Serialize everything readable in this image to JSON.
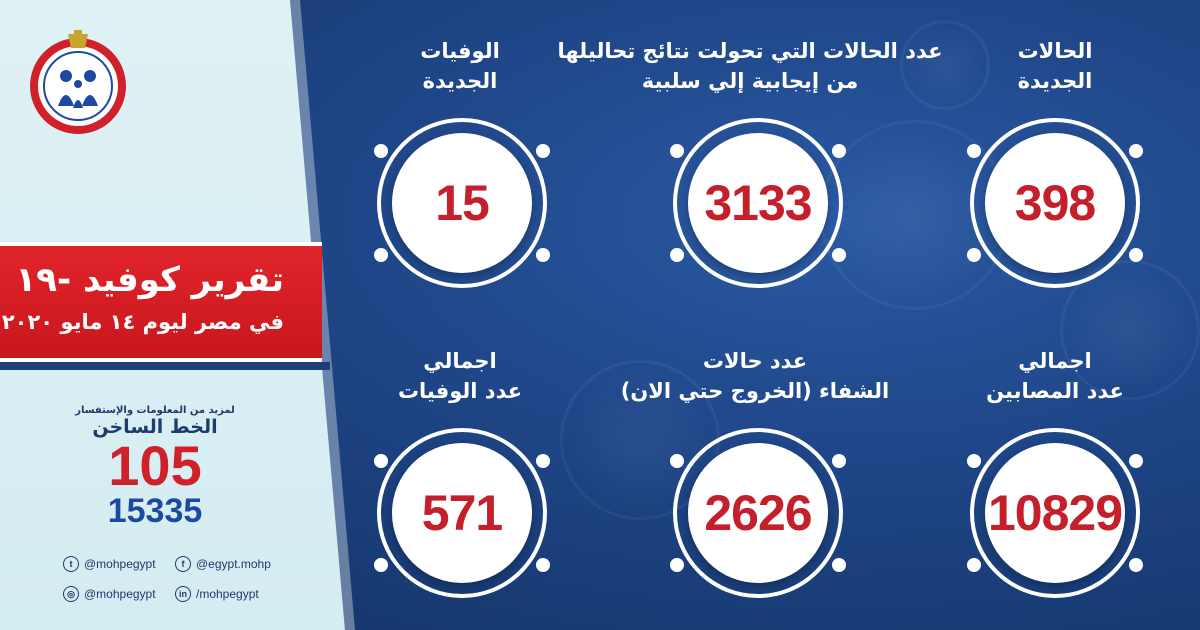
{
  "banner": {
    "title": "تقرير كوفيد -١٩",
    "date": "في مصر ليوم  ١٤  مايو ٢٠٢٠"
  },
  "hotline": {
    "sub": "لمزيد من المعلومات والإستفسار",
    "label": "الخط الساخن",
    "number_primary": "105",
    "number_secondary": "15335"
  },
  "social": {
    "twitter": "@mohpegypt",
    "facebook": "@egypt.mohp",
    "instagram": "@mohpegypt",
    "linkedin": "/mohpegypt"
  },
  "stats": [
    {
      "line1": "الحالات",
      "line2": "الجديدة",
      "value": "398"
    },
    {
      "line1": "عدد الحالات التي تحولت نتائج تحاليلها",
      "line2": "من إيجابية إلي سلبية",
      "value": "3133"
    },
    {
      "line1": "الوفيات",
      "line2": "الجديدة",
      "value": "15"
    },
    {
      "line1": "اجمالي",
      "line2": "عدد المصابين",
      "value": "10829"
    },
    {
      "line1": "عدد حالات",
      "line2": "الشفاء (الخروج حتي الان)",
      "value": "2626"
    },
    {
      "line1": "اجمالي",
      "line2": "عدد الوفيات",
      "value": "571"
    }
  ],
  "colors": {
    "accent_red": "#c3202c",
    "banner_red": "#e1242b",
    "navy": "#1b3f7e",
    "light_panel": "#dff1f5"
  }
}
